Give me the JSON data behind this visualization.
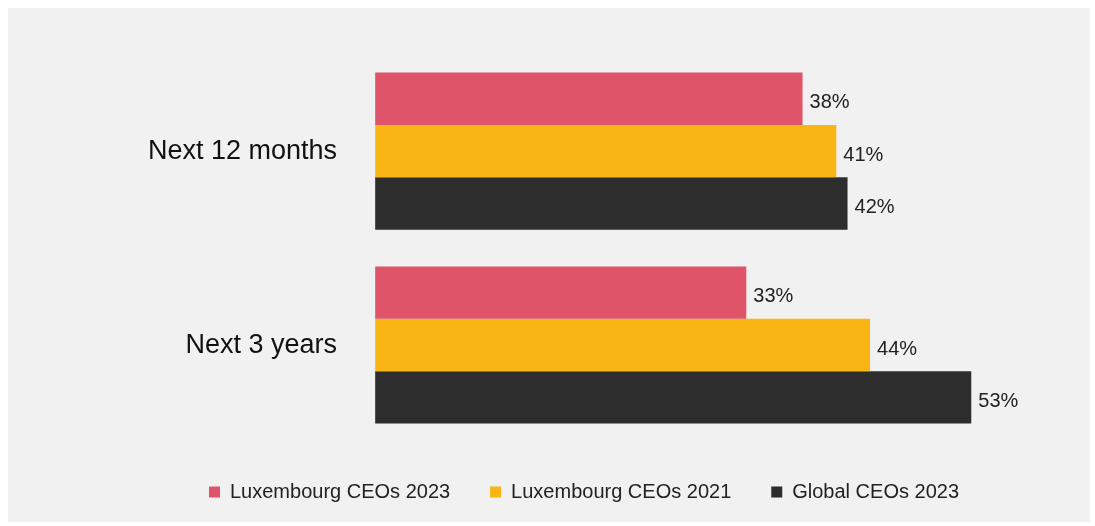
{
  "chart_data": {
    "type": "bar",
    "orientation": "horizontal",
    "categories": [
      "Next 12 months",
      "Next 3 years"
    ],
    "series": [
      {
        "name": "Luxembourg CEOs 2023",
        "color": "#e0546a",
        "values": [
          38,
          33
        ],
        "value_labels": [
          "38%",
          "33%"
        ]
      },
      {
        "name": "Luxembourg CEOs 2021",
        "color": "#f9b514",
        "values": [
          41,
          44
        ],
        "value_labels": [
          "41%",
          "44%"
        ]
      },
      {
        "name": "Global CEOs 2023",
        "color": "#2d2d2d",
        "values": [
          42,
          53
        ],
        "value_labels": [
          "42%",
          "53%"
        ]
      }
    ],
    "legend": "bottom",
    "tick_labels": "y"
  }
}
